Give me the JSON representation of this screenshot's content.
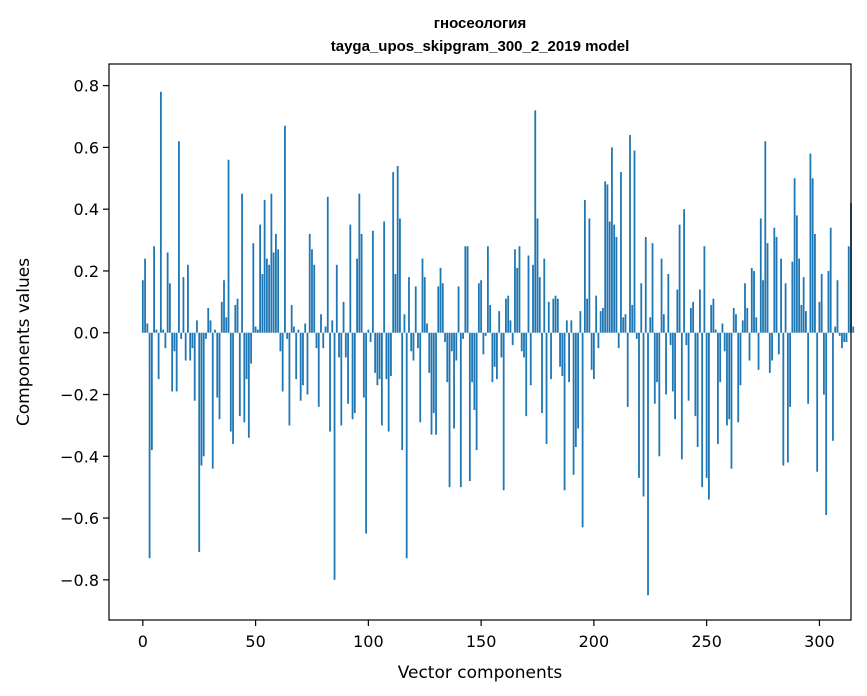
{
  "chart_data": {
    "type": "bar",
    "title": "гносеология",
    "subtitle": "tayga_upos_skipgram_300_2_2019 model",
    "xlabel": "Vector components",
    "ylabel": "Components values",
    "xlim": [
      -15,
      314
    ],
    "ylim": [
      -0.93,
      0.87
    ],
    "xticks": [
      0,
      50,
      100,
      150,
      200,
      250,
      300
    ],
    "xtick_labels": [
      "0",
      "50",
      "100",
      "150",
      "200",
      "250",
      "300"
    ],
    "yticks": [
      -0.8,
      -0.6,
      -0.4,
      -0.2,
      0.0,
      0.2,
      0.4,
      0.6,
      0.8
    ],
    "ytick_labels": [
      "−0.8",
      "−0.6",
      "−0.4",
      "−0.2",
      "0.0",
      "0.2",
      "0.4",
      "0.6",
      "0.8"
    ],
    "bar_color": "#1f77b4",
    "grid": false,
    "values": [
      0.17,
      0.24,
      0.03,
      -0.73,
      -0.38,
      0.28,
      0.01,
      -0.15,
      0.78,
      0.01,
      -0.05,
      0.26,
      0.16,
      -0.19,
      -0.06,
      -0.19,
      0.62,
      -0.02,
      0.18,
      -0.09,
      0.22,
      -0.09,
      -0.05,
      -0.22,
      0.04,
      -0.71,
      -0.43,
      -0.4,
      -0.02,
      0.08,
      0.04,
      -0.44,
      0.01,
      -0.21,
      -0.28,
      0.1,
      0.17,
      0.05,
      0.56,
      -0.32,
      -0.36,
      0.09,
      0.11,
      -0.27,
      0.45,
      -0.29,
      -0.15,
      -0.34,
      -0.1,
      0.29,
      0.02,
      0.01,
      0.35,
      0.19,
      0.43,
      0.24,
      0.22,
      0.45,
      0.26,
      0.32,
      0.27,
      -0.06,
      -0.19,
      0.67,
      -0.02,
      -0.3,
      0.09,
      0.02,
      -0.15,
      0.01,
      -0.22,
      -0.17,
      0.03,
      -0.2,
      0.32,
      0.27,
      0.22,
      -0.05,
      -0.24,
      0.06,
      -0.05,
      0.02,
      0.44,
      -0.32,
      0.04,
      -0.8,
      0.22,
      -0.08,
      -0.3,
      0.1,
      -0.08,
      -0.23,
      0.35,
      -0.28,
      -0.26,
      0.24,
      0.45,
      0.32,
      -0.21,
      -0.65,
      0.01,
      -0.03,
      0.33,
      -0.13,
      -0.17,
      -0.15,
      -0.3,
      0.36,
      -0.15,
      -0.32,
      -0.14,
      0.52,
      0.19,
      0.54,
      0.37,
      -0.38,
      0.06,
      -0.73,
      0.18,
      -0.06,
      -0.09,
      0.15,
      -0.05,
      -0.29,
      0.24,
      0.18,
      0.03,
      -0.13,
      -0.33,
      -0.26,
      -0.33,
      0.15,
      0.21,
      0.16,
      -0.03,
      -0.16,
      -0.5,
      -0.06,
      -0.31,
      -0.09,
      0.15,
      -0.5,
      -0.02,
      0.28,
      0.28,
      -0.48,
      -0.16,
      -0.25,
      -0.38,
      0.16,
      0.17,
      -0.07,
      -0.01,
      0.28,
      0.09,
      -0.16,
      -0.11,
      -0.15,
      0.07,
      -0.08,
      -0.51,
      0.11,
      0.12,
      0.04,
      -0.04,
      0.27,
      0.21,
      0.28,
      -0.06,
      -0.08,
      -0.27,
      0.25,
      -0.17,
      0.22,
      0.72,
      0.37,
      0.18,
      -0.26,
      0.24,
      -0.36,
      0.1,
      -0.15,
      0.11,
      0.12,
      0.11,
      -0.11,
      -0.14,
      -0.51,
      0.04,
      -0.16,
      0.04,
      -0.46,
      -0.37,
      -0.31,
      0.07,
      -0.63,
      0.43,
      0.11,
      0.37,
      -0.12,
      -0.15,
      0.12,
      -0.05,
      0.07,
      0.08,
      0.49,
      0.48,
      0.36,
      0.6,
      0.35,
      0.31,
      -0.05,
      0.52,
      0.05,
      0.06,
      -0.24,
      0.64,
      0.09,
      0.59,
      -0.02,
      -0.47,
      0.16,
      -0.53,
      0.31,
      -0.85,
      0.05,
      0.29,
      -0.23,
      -0.16,
      -0.4,
      0.24,
      0.06,
      -0.2,
      0.19,
      -0.04,
      -0.19,
      -0.28,
      0.14,
      0.35,
      -0.41,
      0.4,
      -0.04,
      -0.22,
      0.08,
      0.1,
      -0.27,
      -0.37,
      0.14,
      -0.5,
      0.28,
      -0.47,
      -0.54,
      0.09,
      0.11,
      0.01,
      -0.36,
      -0.16,
      0.03,
      -0.06,
      -0.3,
      -0.28,
      -0.44,
      0.08,
      0.06,
      -0.29,
      -0.17,
      0.04,
      0.16,
      0.08,
      -0.09,
      0.21,
      0.2,
      0.05,
      -0.12,
      0.37,
      0.17,
      0.62,
      0.29,
      -0.13,
      -0.09,
      0.34,
      0.31,
      -0.07,
      0.24,
      -0.43,
      0.16,
      -0.42,
      -0.24,
      0.23,
      0.5,
      0.38,
      0.24,
      0.09,
      0.18,
      0.07,
      -0.23,
      0.58,
      0.5,
      0.32,
      -0.45,
      0.1,
      0.19,
      -0.2,
      -0.59,
      0.2,
      0.34,
      -0.35,
      0.02,
      0.17,
      -0.01,
      -0.05,
      -0.03,
      -0.03,
      0.28,
      0.42,
      0.02
    ]
  }
}
